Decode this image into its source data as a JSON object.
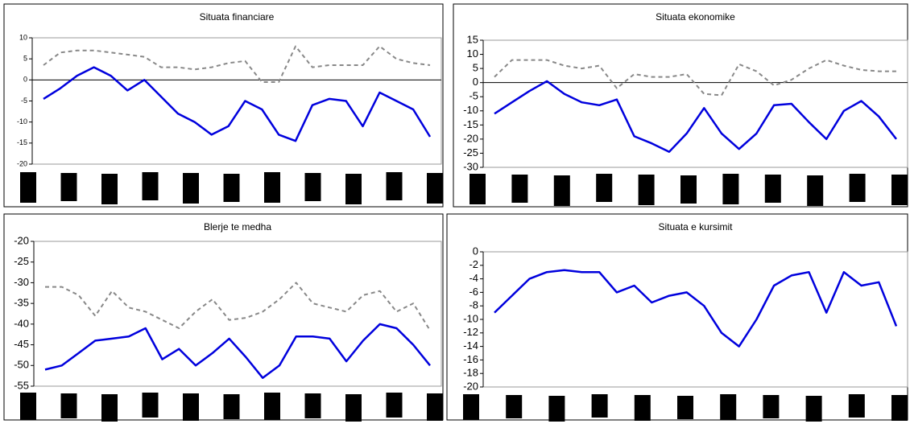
{
  "chart_data": [
    {
      "type": "line",
      "title": "Situata financiare",
      "categories": [
        null,
        null,
        null,
        null,
        null,
        null,
        null,
        null,
        null,
        null,
        null,
        null,
        null,
        null,
        null,
        null,
        null,
        null,
        null,
        null,
        null,
        null,
        null,
        null
      ],
      "series": [
        {
          "color": "#0000dd",
          "style": "solid",
          "values": [
            -4.5,
            -2,
            1,
            3,
            1,
            -2.5,
            0,
            -4,
            -8,
            -10,
            -13,
            -11,
            -5,
            -7,
            -13,
            -14.5,
            -6,
            -4.5,
            -5,
            -11,
            -3,
            -5,
            -7,
            -13.5
          ]
        },
        {
          "color": "#888888",
          "style": "dashed",
          "values": [
            3.5,
            6.5,
            7,
            7,
            6.5,
            6,
            5.5,
            3,
            3,
            2.5,
            3,
            4,
            4.5,
            -0.5,
            -0.5,
            8,
            3,
            3.5,
            3.5,
            3.5,
            8,
            5,
            4,
            3.5
          ]
        }
      ],
      "ylim": [
        -20,
        10
      ],
      "yticks": [
        10,
        5,
        0,
        -5,
        -10,
        -15,
        -20
      ],
      "zero_line": true
    },
    {
      "type": "line",
      "title": "Situata ekonomike",
      "categories": [
        null,
        null,
        null,
        null,
        null,
        null,
        null,
        null,
        null,
        null,
        null,
        null,
        null,
        null,
        null,
        null,
        null,
        null,
        null,
        null,
        null,
        null,
        null,
        null
      ],
      "series": [
        {
          "color": "#0000dd",
          "style": "solid",
          "values": [
            -11,
            -7,
            -3,
            0.5,
            -4,
            -7,
            -8,
            -6,
            -19,
            -21.5,
            -24.5,
            -18,
            -9,
            -18,
            -23.5,
            -18,
            -8,
            -7.5,
            -14,
            -20,
            -10,
            -6.5,
            -12,
            -20
          ]
        },
        {
          "color": "#888888",
          "style": "dashed",
          "values": [
            2,
            8,
            8,
            8,
            6,
            5,
            6,
            -2,
            3,
            2,
            2,
            3,
            -4,
            -4.5,
            6.5,
            4,
            -1,
            1,
            5,
            8,
            6,
            4.5,
            4,
            4
          ]
        }
      ],
      "ylim": [
        -30,
        15
      ],
      "yticks": [
        15,
        10,
        5,
        0,
        -5,
        -10,
        -15,
        -20,
        -25,
        -30
      ],
      "zero_line": true
    },
    {
      "type": "line",
      "title": "Blerje te medha",
      "categories": [
        null,
        null,
        null,
        null,
        null,
        null,
        null,
        null,
        null,
        null,
        null,
        null,
        null,
        null,
        null,
        null,
        null,
        null,
        null,
        null,
        null,
        null,
        null,
        null
      ],
      "series": [
        {
          "color": "#0000dd",
          "style": "solid",
          "values": [
            -51,
            -50,
            -47,
            -44,
            -43.5,
            -43,
            -41,
            -48.5,
            -46,
            -50,
            -47,
            -43.5,
            -48,
            -53,
            -50,
            -43,
            -43,
            -43.5,
            -49,
            -44,
            -40,
            -41,
            -45,
            -50
          ]
        },
        {
          "color": "#888888",
          "style": "dashed",
          "values": [
            -31,
            -31,
            -33,
            -38,
            -32,
            -36,
            -37,
            -39,
            -41,
            -37,
            -34,
            -39,
            -38.5,
            -37,
            -34,
            -30,
            -35,
            -36,
            -37,
            -33,
            -32,
            -37,
            -35,
            -41.5
          ]
        }
      ],
      "ylim": [
        -55,
        -20
      ],
      "yticks": [
        -20,
        -25,
        -30,
        -35,
        -40,
        -45,
        -50,
        -55
      ],
      "zero_line": false
    },
    {
      "type": "line",
      "title": "Situata e kursimit",
      "categories": [
        null,
        null,
        null,
        null,
        null,
        null,
        null,
        null,
        null,
        null,
        null,
        null,
        null,
        null,
        null,
        null,
        null,
        null,
        null,
        null,
        null,
        null,
        null,
        null
      ],
      "series": [
        {
          "color": "#0000dd",
          "style": "solid",
          "values": [
            -9,
            -6.5,
            -4,
            -3,
            -2.7,
            -3,
            -3,
            -6,
            -5,
            -7.5,
            -6.5,
            -6,
            -8,
            -12,
            -14,
            -10,
            -5,
            -3.5,
            -3,
            -9,
            -3,
            -5,
            -4.5,
            -11
          ]
        }
      ],
      "ylim": [
        -20,
        0
      ],
      "yticks": [
        0,
        -2,
        -4,
        -6,
        -8,
        -10,
        -12,
        -14,
        -16,
        -18,
        -20
      ],
      "zero_line": false
    }
  ]
}
